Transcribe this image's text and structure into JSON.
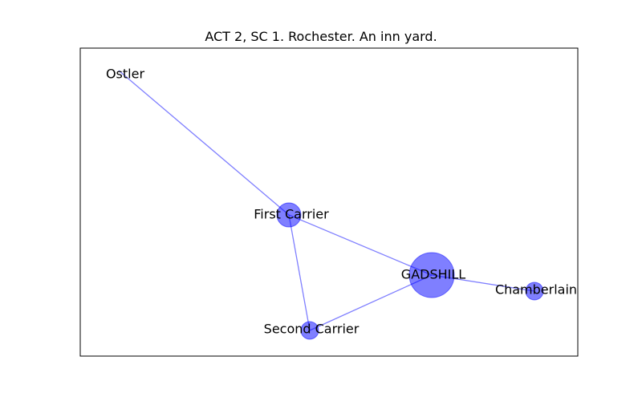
{
  "title": "ACT 2, SC 1. Rochester. An inn yard.",
  "colors": {
    "node_fill": "#0000ff",
    "node_opacity": "0.5",
    "edge": "#0000ff",
    "edge_opacity": "0.5",
    "frame": "#000000"
  },
  "nodes": [
    {
      "id": "ostler",
      "label": "Ostler",
      "weight": 0
    },
    {
      "id": "first-carrier",
      "label": "First Carrier",
      "weight": 4
    },
    {
      "id": "gadshill",
      "label": "GADSHILL",
      "weight": 10
    },
    {
      "id": "chamberlain",
      "label": "Chamberlain",
      "weight": 2
    },
    {
      "id": "second-carrier",
      "label": "Second Carrier",
      "weight": 2
    }
  ],
  "edges": [
    {
      "source": "ostler",
      "target": "first-carrier"
    },
    {
      "source": "first-carrier",
      "target": "gadshill"
    },
    {
      "source": "first-carrier",
      "target": "second-carrier"
    },
    {
      "source": "second-carrier",
      "target": "gadshill"
    },
    {
      "source": "gadshill",
      "target": "chamberlain"
    }
  ]
}
